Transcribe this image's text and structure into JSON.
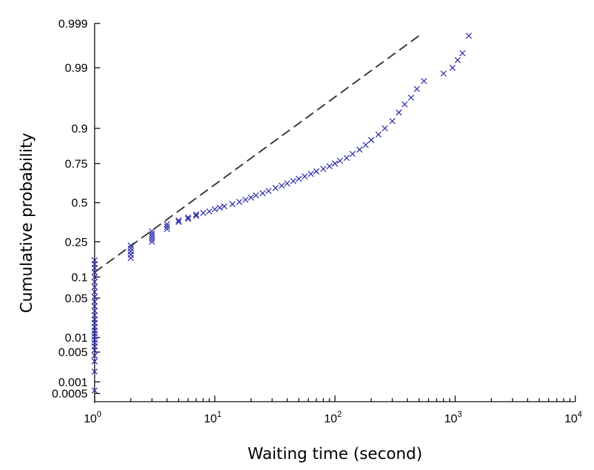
{
  "chart_data": {
    "type": "scatter",
    "xlabel": "Waiting time (second)",
    "ylabel": "Cumulative probability",
    "x_scale": "log",
    "y_scale": "probability (normal/lognormal paper)",
    "xlim": [
      1,
      10000
    ],
    "ylim": [
      0.0003,
      0.999
    ],
    "x_ticks": [
      {
        "value": 1,
        "base": "10",
        "exp": "0"
      },
      {
        "value": 10,
        "base": "10",
        "exp": "1"
      },
      {
        "value": 100,
        "base": "10",
        "exp": "2"
      },
      {
        "value": 1000,
        "base": "10",
        "exp": "3"
      },
      {
        "value": 10000,
        "base": "10",
        "exp": "4"
      }
    ],
    "y_ticks": [
      {
        "value": 0.0005,
        "label": "0.0005"
      },
      {
        "value": 0.001,
        "label": "0.001"
      },
      {
        "value": 0.005,
        "label": "0.005"
      },
      {
        "value": 0.01,
        "label": "0.01"
      },
      {
        "value": 0.05,
        "label": "0.05"
      },
      {
        "value": 0.1,
        "label": "0.1"
      },
      {
        "value": 0.25,
        "label": "0.25"
      },
      {
        "value": 0.5,
        "label": "0.5"
      },
      {
        "value": 0.75,
        "label": "0.75"
      },
      {
        "value": 0.9,
        "label": "0.9"
      },
      {
        "value": 0.99,
        "label": "0.99"
      },
      {
        "value": 0.999,
        "label": "0.999"
      }
    ],
    "grid": false,
    "marker": "x",
    "marker_color": "#2a2aa8",
    "fit_line": {
      "style": "dashed",
      "color": "#333333",
      "x": [
        1,
        500
      ],
      "y": [
        0.115,
        0.998
      ]
    },
    "series": [
      {
        "points": [
          [
            1,
            0.0006
          ],
          [
            1,
            0.0018
          ],
          [
            1,
            0.0031
          ],
          [
            1,
            0.0042
          ],
          [
            1,
            0.0055
          ],
          [
            1,
            0.0066
          ],
          [
            1,
            0.0078
          ],
          [
            1,
            0.009
          ],
          [
            1,
            0.0105
          ],
          [
            1,
            0.012
          ],
          [
            1,
            0.0138
          ],
          [
            1,
            0.016
          ],
          [
            1,
            0.019
          ],
          [
            1,
            0.022
          ],
          [
            1,
            0.026
          ],
          [
            1,
            0.031
          ],
          [
            1,
            0.037
          ],
          [
            1,
            0.044
          ],
          [
            1,
            0.052
          ],
          [
            1,
            0.062
          ],
          [
            1,
            0.073
          ],
          [
            1,
            0.086
          ],
          [
            1,
            0.1
          ],
          [
            1,
            0.115
          ],
          [
            1,
            0.13
          ],
          [
            1,
            0.145
          ],
          [
            1,
            0.16
          ],
          [
            2,
            0.17
          ],
          [
            2,
            0.185
          ],
          [
            2,
            0.2
          ],
          [
            2,
            0.215
          ],
          [
            2,
            0.23
          ],
          [
            3,
            0.25
          ],
          [
            3,
            0.265
          ],
          [
            3,
            0.28
          ],
          [
            3,
            0.295
          ],
          [
            3,
            0.31
          ],
          [
            4,
            0.325
          ],
          [
            4,
            0.34
          ],
          [
            4,
            0.355
          ],
          [
            5,
            0.37
          ],
          [
            5,
            0.38
          ],
          [
            6,
            0.39
          ],
          [
            6,
            0.4
          ],
          [
            7,
            0.41
          ],
          [
            7,
            0.42
          ],
          [
            8,
            0.43
          ],
          [
            9,
            0.44
          ],
          [
            10,
            0.455
          ],
          [
            11,
            0.465
          ],
          [
            12,
            0.475
          ],
          [
            14,
            0.49
          ],
          [
            16,
            0.505
          ],
          [
            18,
            0.52
          ],
          [
            20,
            0.535
          ],
          [
            22,
            0.55
          ],
          [
            25,
            0.565
          ],
          [
            28,
            0.58
          ],
          [
            32,
            0.6
          ],
          [
            36,
            0.615
          ],
          [
            40,
            0.63
          ],
          [
            45,
            0.645
          ],
          [
            50,
            0.66
          ],
          [
            56,
            0.675
          ],
          [
            63,
            0.69
          ],
          [
            70,
            0.705
          ],
          [
            80,
            0.72
          ],
          [
            90,
            0.735
          ],
          [
            100,
            0.75
          ],
          [
            110,
            0.765
          ],
          [
            125,
            0.78
          ],
          [
            140,
            0.8
          ],
          [
            160,
            0.82
          ],
          [
            180,
            0.84
          ],
          [
            200,
            0.86
          ],
          [
            230,
            0.88
          ],
          [
            260,
            0.9
          ],
          [
            300,
            0.92
          ],
          [
            340,
            0.94
          ],
          [
            380,
            0.955
          ],
          [
            430,
            0.965
          ],
          [
            480,
            0.975
          ],
          [
            550,
            0.982
          ],
          [
            800,
            0.987
          ],
          [
            950,
            0.99
          ],
          [
            1050,
            0.993
          ],
          [
            1150,
            0.995
          ],
          [
            1300,
            0.998
          ]
        ]
      }
    ]
  }
}
